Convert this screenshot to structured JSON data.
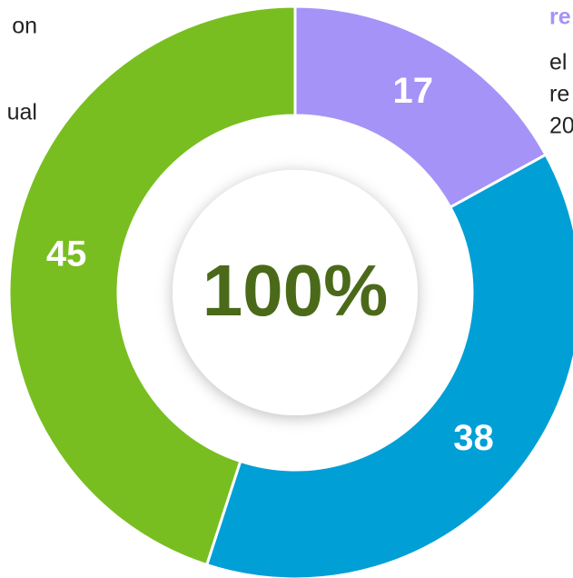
{
  "chart_data": {
    "type": "donut",
    "categories": [
      "Purple",
      "Blue",
      "Green"
    ],
    "series": [
      {
        "values": [
          17,
          38,
          45
        ],
        "colors": [
          "#a593f7",
          "#009fd6",
          "#78be20"
        ]
      }
    ],
    "center_label": "100%",
    "annotations": [
      {
        "text": "on",
        "side": "left"
      },
      {
        "text": "ual",
        "side": "left"
      },
      {
        "text": "re",
        "side": "right",
        "bold": true,
        "color": "#a593f7"
      },
      {
        "text": "el",
        "side": "right"
      },
      {
        "text": "re",
        "side": "right"
      },
      {
        "text": "20",
        "side": "right"
      }
    ]
  }
}
